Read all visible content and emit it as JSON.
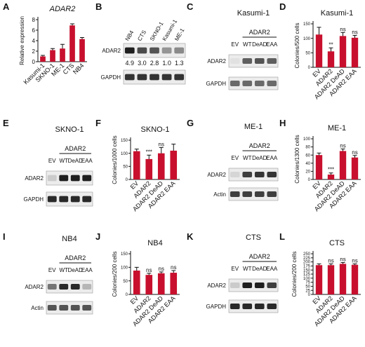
{
  "panel_labels": [
    "A",
    "B",
    "C",
    "D",
    "E",
    "F",
    "G",
    "H",
    "I",
    "J",
    "K",
    "L"
  ],
  "chart_data": [
    {
      "id": "A",
      "type": "bar",
      "title": "ADAR2",
      "ylabel": "Relative expression",
      "categories": [
        "Kasumi-1",
        "SKNO-1",
        "ME-1",
        "CTS",
        "NB4"
      ],
      "values": [
        1.0,
        2.2,
        2.5,
        6.9,
        4.3
      ],
      "errors": [
        0.2,
        0.3,
        0.8,
        0.3,
        0.3
      ],
      "ylim": [
        0,
        8
      ],
      "yticks": [
        0,
        2,
        4,
        6,
        8
      ],
      "significance": [
        "",
        "",
        "",
        "",
        ""
      ]
    },
    {
      "id": "D",
      "type": "bar",
      "title": "Kasumi-1",
      "ylabel": "Colonies/500 cells",
      "categories": [
        "EV",
        "ADAR2",
        "ADAR2 DeAD",
        "ADAR2 EAA"
      ],
      "values": [
        113,
        55,
        108,
        102
      ],
      "errors": [
        25,
        12,
        12,
        8
      ],
      "ylim": [
        0,
        150
      ],
      "yticks": [
        0,
        50,
        100,
        150
      ],
      "significance": [
        "",
        "**",
        "ns",
        "ns"
      ]
    },
    {
      "id": "F",
      "type": "bar",
      "title": "SKNO-1",
      "ylabel": "Colonies/1000 cells",
      "categories": [
        "EV",
        "ADAR2",
        "ADAR2 DeAD",
        "ADAR2 EAA"
      ],
      "values": [
        108,
        78,
        100,
        110
      ],
      "errors": [
        8,
        15,
        22,
        25
      ],
      "ylim": [
        0,
        150
      ],
      "yticks": [
        0,
        50,
        100,
        150
      ],
      "significance": [
        "",
        "***",
        "ns",
        ""
      ]
    },
    {
      "id": "H",
      "type": "bar",
      "title": "ME-1",
      "ylabel": "Colonies/1300 cells",
      "categories": [
        "EV",
        "ADAR2",
        "ADAR2 DeAD",
        "ADAR2 EAA"
      ],
      "values": [
        60,
        12,
        70,
        54
      ],
      "errors": [
        5,
        4,
        5,
        5
      ],
      "ylim": [
        0,
        100
      ],
      "yticks": [
        0,
        20,
        40,
        60,
        80,
        100
      ],
      "significance": [
        "",
        "***",
        "ns",
        "ns"
      ]
    },
    {
      "id": "J",
      "type": "bar",
      "title": "NB4",
      "ylabel": "Colonies/200 cells",
      "categories": [
        "EV",
        "ADAR2",
        "ADAR2 DeAD",
        "ADAR2 EAA"
      ],
      "values": [
        88,
        72,
        78,
        80
      ],
      "errors": [
        12,
        6,
        5,
        8
      ],
      "ylim": [
        0,
        150
      ],
      "yticks": [
        0,
        50,
        100,
        150
      ],
      "significance": [
        "",
        "ns",
        "ns",
        "ns"
      ]
    },
    {
      "id": "L",
      "type": "bar",
      "title": "CTS",
      "ylabel": "Colonies/200 cells",
      "categories": [
        "EV",
        "ADAR2",
        "ADAR2 DeAD",
        "ADAR2 EAA"
      ],
      "values": [
        180,
        180,
        188,
        182
      ],
      "errors": [
        8,
        8,
        8,
        6
      ],
      "ylim": [
        0,
        250
      ],
      "yticks": [
        0,
        25,
        50,
        75,
        100,
        125,
        150,
        175,
        200,
        225,
        250
      ],
      "significance": [
        "",
        "ns",
        "ns",
        "ns"
      ]
    }
  ],
  "blots": [
    {
      "id": "B",
      "title": "",
      "group_label": "",
      "lanes": [
        "NB4",
        "CTS",
        "SKNO-1",
        "Kasumi-1",
        "ME-1"
      ],
      "rows": [
        {
          "name": "ADAR2",
          "intensity": [
            0.95,
            0.75,
            0.7,
            0.4,
            0.45
          ]
        },
        {
          "name": "GAPDH",
          "intensity": [
            0.85,
            0.85,
            0.85,
            0.85,
            0.85
          ]
        }
      ],
      "quant": [
        "4.9",
        "3.0",
        "2.8",
        "1.0",
        "1.3"
      ]
    },
    {
      "id": "C",
      "title": "Kasumi-1",
      "group_label": "ADAR2",
      "lanes": [
        "EV",
        "WT",
        "DeAD",
        "EAA"
      ],
      "rows": [
        {
          "name": "ADAR2",
          "intensity": [
            0.05,
            0.65,
            0.7,
            0.65
          ]
        },
        {
          "name": "GAPDH",
          "intensity": [
            0.6,
            0.6,
            0.6,
            0.6
          ]
        }
      ],
      "quant": []
    },
    {
      "id": "E",
      "title": "SKNO-1",
      "group_label": "ADAR2",
      "lanes": [
        "EV",
        "WT",
        "DeAD",
        "EAA"
      ],
      "rows": [
        {
          "name": "ADAR2",
          "intensity": [
            0.15,
            0.95,
            0.95,
            0.95
          ]
        },
        {
          "name": "GAPDH",
          "intensity": [
            0.9,
            0.9,
            0.9,
            0.9
          ]
        }
      ],
      "quant": []
    },
    {
      "id": "G",
      "title": "ME-1",
      "group_label": "ADAR2",
      "lanes": [
        "EV",
        "WT",
        "DeAD",
        "EAA"
      ],
      "rows": [
        {
          "name": "ADAR2",
          "intensity": [
            0.1,
            0.8,
            0.85,
            0.85
          ]
        },
        {
          "name": "Actin",
          "intensity": [
            0.8,
            0.8,
            0.8,
            0.8
          ]
        }
      ],
      "quant": []
    },
    {
      "id": "I",
      "title": "NB4",
      "group_label": "ADAR2",
      "lanes": [
        "EV",
        "WT",
        "DeAD",
        "EAA"
      ],
      "rows": [
        {
          "name": "ADAR2",
          "intensity": [
            0.55,
            0.9,
            0.9,
            0.25
          ]
        },
        {
          "name": "Actin",
          "intensity": [
            0.7,
            0.7,
            0.7,
            0.7
          ]
        }
      ],
      "quant": []
    },
    {
      "id": "K",
      "title": "CTS",
      "group_label": "ADAR2",
      "lanes": [
        "EV",
        "WT",
        "DeAD",
        "EAA"
      ],
      "rows": [
        {
          "name": "ADAR2",
          "intensity": [
            0.15,
            0.95,
            0.95,
            0.8
          ]
        },
        {
          "name": "GAPDH",
          "intensity": [
            0.9,
            0.9,
            0.9,
            0.9
          ]
        }
      ],
      "quant": []
    }
  ],
  "colors": {
    "bar": "#c8102e",
    "axis": "#111111",
    "blot_bg": "#ececec"
  }
}
